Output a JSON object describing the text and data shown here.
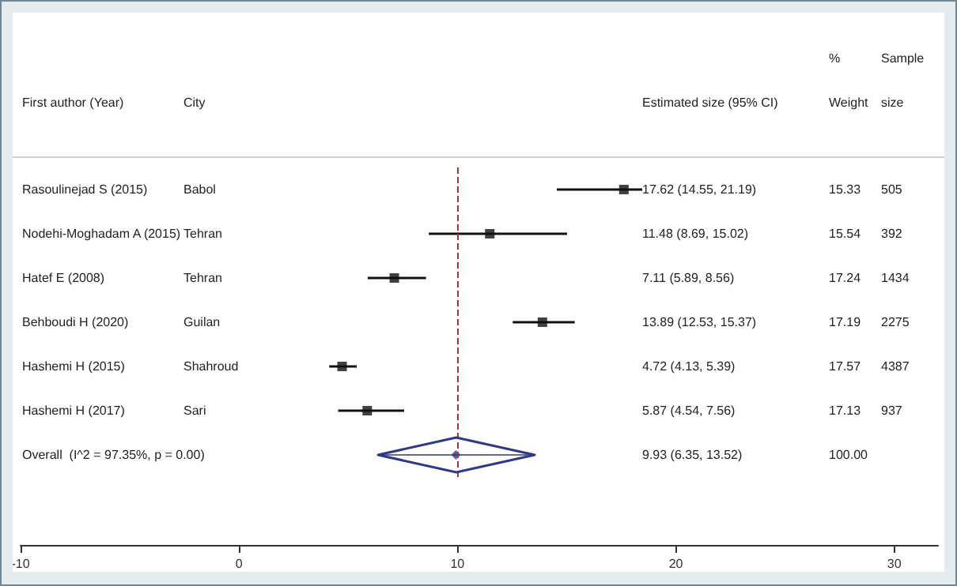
{
  "chart_data": {
    "type": "scatter",
    "orientation": "horizontal",
    "ylabel": "First author (Year)",
    "categories": [
      "Rasoulinejad S (2015)",
      "Nodehi-Moghadam A (2015)",
      "Hatef E (2008)",
      "Behboudi H (2020)",
      "Hashemi H (2015)",
      "Hashemi H (2017)",
      "Overall  (I^2 = 97.35%, p = 0.00)"
    ],
    "series": [
      {
        "color": "#111111",
        "marker": "square",
        "values": [
          17.62,
          11.48,
          7.11,
          13.89,
          4.72,
          5.87,
          null
        ],
        "errors": [
          [
            14.55,
            21.19
          ],
          [
            8.69,
            15.02
          ],
          [
            5.89,
            8.56
          ],
          [
            12.53,
            15.37
          ],
          [
            4.13,
            5.39
          ],
          [
            4.54,
            7.56
          ],
          null
        ]
      },
      {
        "color": "#2e3a87",
        "marker": "diamond",
        "values": [
          null,
          null,
          null,
          null,
          null,
          null,
          9.93
        ],
        "errors": [
          null,
          null,
          null,
          null,
          null,
          null,
          [
            6.35,
            13.52
          ]
        ]
      }
    ],
    "xlim": [
      -10,
      32
    ],
    "xticks": [
      -10,
      0,
      10,
      20,
      30
    ],
    "ref_lines": [
      {
        "axis": "x",
        "value": 10,
        "color": "#a0353a",
        "line_style": "dashed"
      }
    ],
    "annotations": [
      "City",
      "Estimated size (95% CI)",
      "%\nWeight",
      "Sample\nsize",
      "Babol",
      "17.62 (14.55, 21.19)",
      "15.33",
      "505",
      "Tehran",
      "11.48 (8.69, 15.02)",
      "15.54",
      "392",
      "Tehran",
      "7.11 (5.89, 8.56)",
      "17.24",
      "1434",
      "Guilan",
      "13.89 (12.53, 15.37)",
      "17.19",
      "2275",
      "Shahroud",
      "4.72 (4.13, 5.39)",
      "17.57",
      "4387",
      "Sari",
      "5.87 (4.54, 7.56)",
      "17.13",
      "937",
      "9.93 (6.35, 13.52)",
      "100.00"
    ]
  }
}
